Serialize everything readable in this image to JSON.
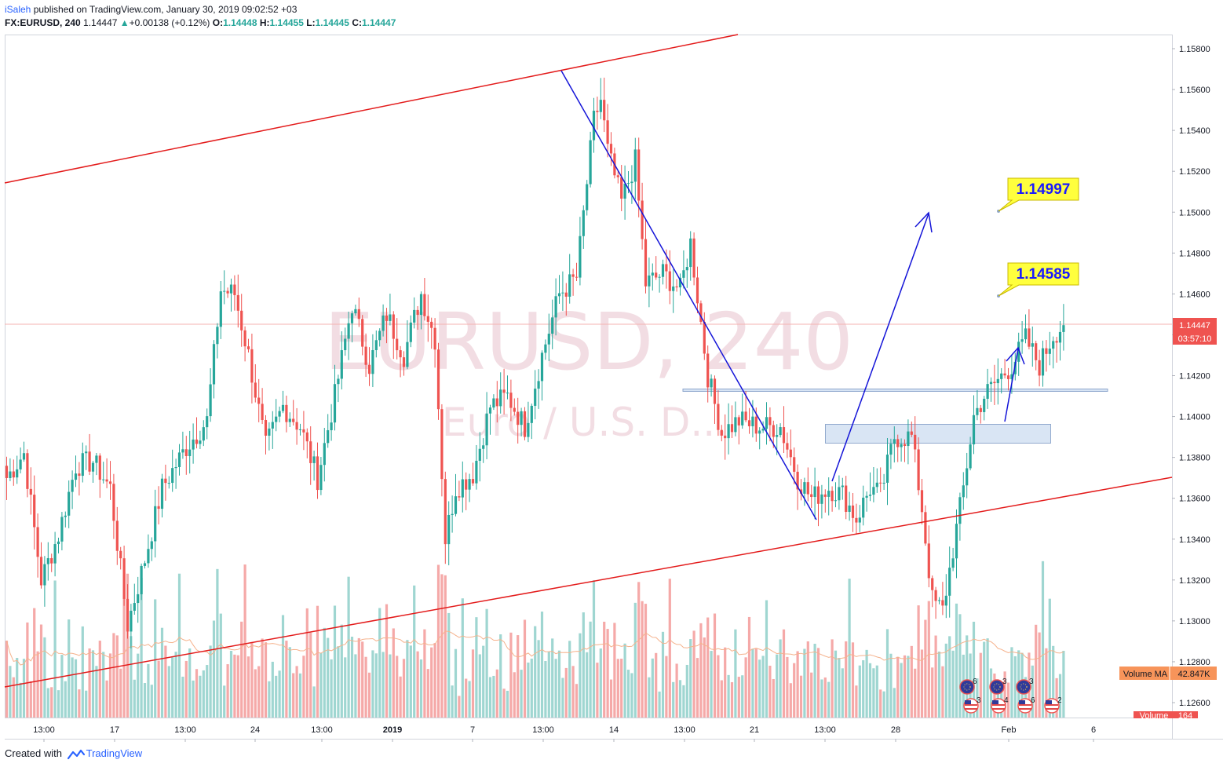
{
  "header": {
    "author": "iSaleh",
    "published_text": "published on TradingView.com, January 30, 2019 09:02:52 +03",
    "symbol_interval": "FX:EURUSD, 240",
    "last": "1.14447",
    "up_symbol": "▲",
    "change": "+0.00138 (+0.12%)",
    "o_label": "O:",
    "o_value": "1.14448",
    "h_label": "H:",
    "h_value": "1.14455",
    "l_label": "L:",
    "l_value": "1.14445",
    "c_label": "C:",
    "c_value": "1.14447"
  },
  "footer": {
    "created_with": "Created with",
    "brand": "TradingView"
  },
  "colors": {
    "up": "#26a69a",
    "down": "#ef5350",
    "volume_up": "#9fd6d1",
    "volume_down": "#f5a9a8",
    "trendline_red": "#e31b1b",
    "trendline_blue": "#1515d8",
    "callout_fill": "#ffff3d",
    "callout_text": "#1a1aff",
    "zone_fill": "#d7e4f4",
    "zone_border": "#8da6cc",
    "watermark": "#f2dde3",
    "volume_ma_line": "#f5b28c",
    "volume_ma_label": "#f7945a",
    "price_label": "#ef5350"
  },
  "watermark": {
    "title": "EURUSD, 240",
    "subtitle": "Euro / U.S. D..."
  },
  "chart_data": {
    "type": "candlestick",
    "symbol": "FX:EURUSD",
    "interval": "240",
    "y_axis": {
      "ticks": [
        "1.15800",
        "1.15600",
        "1.15400",
        "1.15200",
        "1.15000",
        "1.14800",
        "1.14600",
        "1.14400",
        "1.14200",
        "1.14000",
        "1.13800",
        "1.13600",
        "1.13400",
        "1.13200",
        "1.13000",
        "1.12800",
        "1.12600"
      ],
      "range": [
        1.1252,
        1.1588
      ]
    },
    "x_axis": {
      "ticks": [
        "13:00",
        "17",
        "13:00",
        "24",
        "13:00",
        "2019",
        "7",
        "13:00",
        "14",
        "13:00",
        "21",
        "13:00",
        "28",
        "Feb",
        "6"
      ]
    },
    "current_price": "1.14447",
    "countdown": "03:57:10",
    "volume_ma_label": "Volume MA",
    "volume_ma_value": "42.847K",
    "volume_label": "Volume",
    "volume_value": "164",
    "callouts": [
      "1.14997",
      "1.14585"
    ],
    "event_counts": [
      "6",
      "3",
      "3",
      "3",
      "4",
      "6",
      "2"
    ],
    "annotations": {
      "upper_channel_line": [
        [
          1.1515,
          "start"
        ],
        [
          1.1588,
          "mid"
        ]
      ],
      "lower_channel_line": [
        [
          1.1262,
          "start"
        ],
        [
          1.137,
          "end"
        ]
      ],
      "blue_downtrend": [
        1.1569,
        1.1349
      ],
      "blue_arrow_1_target": 1.15,
      "blue_arrow_2_target": 1.1432,
      "support_line": 1.1413,
      "demand_zone": [
        1.1388,
        1.1396
      ],
      "callout_targets": [
        1.15,
        1.1459
      ]
    },
    "anchors": [
      {
        "i": 0,
        "p": 1.137
      },
      {
        "i": 5,
        "p": 1.1382
      },
      {
        "i": 10,
        "p": 1.132
      },
      {
        "i": 15,
        "p": 1.1342
      },
      {
        "i": 20,
        "p": 1.1376
      },
      {
        "i": 25,
        "p": 1.1378
      },
      {
        "i": 30,
        "p": 1.1365
      },
      {
        "i": 35,
        "p": 1.1298
      },
      {
        "i": 40,
        "p": 1.133
      },
      {
        "i": 45,
        "p": 1.1365
      },
      {
        "i": 52,
        "p": 1.1385
      },
      {
        "i": 58,
        "p": 1.1398
      },
      {
        "i": 62,
        "p": 1.1462
      },
      {
        "i": 66,
        "p": 1.146
      },
      {
        "i": 70,
        "p": 1.143
      },
      {
        "i": 75,
        "p": 1.1385
      },
      {
        "i": 80,
        "p": 1.1405
      },
      {
        "i": 85,
        "p": 1.1395
      },
      {
        "i": 90,
        "p": 1.137
      },
      {
        "i": 95,
        "p": 1.141
      },
      {
        "i": 100,
        "p": 1.1455
      },
      {
        "i": 105,
        "p": 1.1425
      },
      {
        "i": 110,
        "p": 1.145
      },
      {
        "i": 115,
        "p": 1.143
      },
      {
        "i": 120,
        "p": 1.146
      },
      {
        "i": 124,
        "p": 1.1438
      },
      {
        "i": 127,
        "p": 1.134
      },
      {
        "i": 130,
        "p": 1.1365
      },
      {
        "i": 135,
        "p": 1.1372
      },
      {
        "i": 140,
        "p": 1.1405
      },
      {
        "i": 145,
        "p": 1.141
      },
      {
        "i": 150,
        "p": 1.1395
      },
      {
        "i": 155,
        "p": 1.143
      },
      {
        "i": 160,
        "p": 1.146
      },
      {
        "i": 165,
        "p": 1.1468
      },
      {
        "i": 170,
        "p": 1.1545
      },
      {
        "i": 172,
        "p": 1.1555
      },
      {
        "i": 174,
        "p": 1.153
      },
      {
        "i": 178,
        "p": 1.1505
      },
      {
        "i": 182,
        "p": 1.1525
      },
      {
        "i": 185,
        "p": 1.1465
      },
      {
        "i": 190,
        "p": 1.147
      },
      {
        "i": 195,
        "p": 1.1462
      },
      {
        "i": 198,
        "p": 1.1485
      },
      {
        "i": 203,
        "p": 1.142
      },
      {
        "i": 207,
        "p": 1.1392
      },
      {
        "i": 212,
        "p": 1.1398
      },
      {
        "i": 218,
        "p": 1.1395
      },
      {
        "i": 224,
        "p": 1.1395
      },
      {
        "i": 229,
        "p": 1.137
      },
      {
        "i": 233,
        "p": 1.136
      },
      {
        "i": 238,
        "p": 1.1365
      },
      {
        "i": 242,
        "p": 1.1362
      },
      {
        "i": 246,
        "p": 1.135
      },
      {
        "i": 250,
        "p": 1.1365
      },
      {
        "i": 253,
        "p": 1.1362
      },
      {
        "i": 257,
        "p": 1.139
      },
      {
        "i": 262,
        "p": 1.139
      },
      {
        "i": 265,
        "p": 1.1355
      },
      {
        "i": 268,
        "p": 1.131
      },
      {
        "i": 271,
        "p": 1.1305
      },
      {
        "i": 274,
        "p": 1.1335
      },
      {
        "i": 277,
        "p": 1.1365
      },
      {
        "i": 280,
        "p": 1.14
      },
      {
        "i": 283,
        "p": 1.141
      },
      {
        "i": 287,
        "p": 1.1418
      },
      {
        "i": 291,
        "p": 1.1425
      },
      {
        "i": 295,
        "p": 1.1438
      },
      {
        "i": 299,
        "p": 1.1425
      },
      {
        "i": 303,
        "p": 1.144
      },
      {
        "i": 306,
        "p": 1.14447
      }
    ]
  }
}
